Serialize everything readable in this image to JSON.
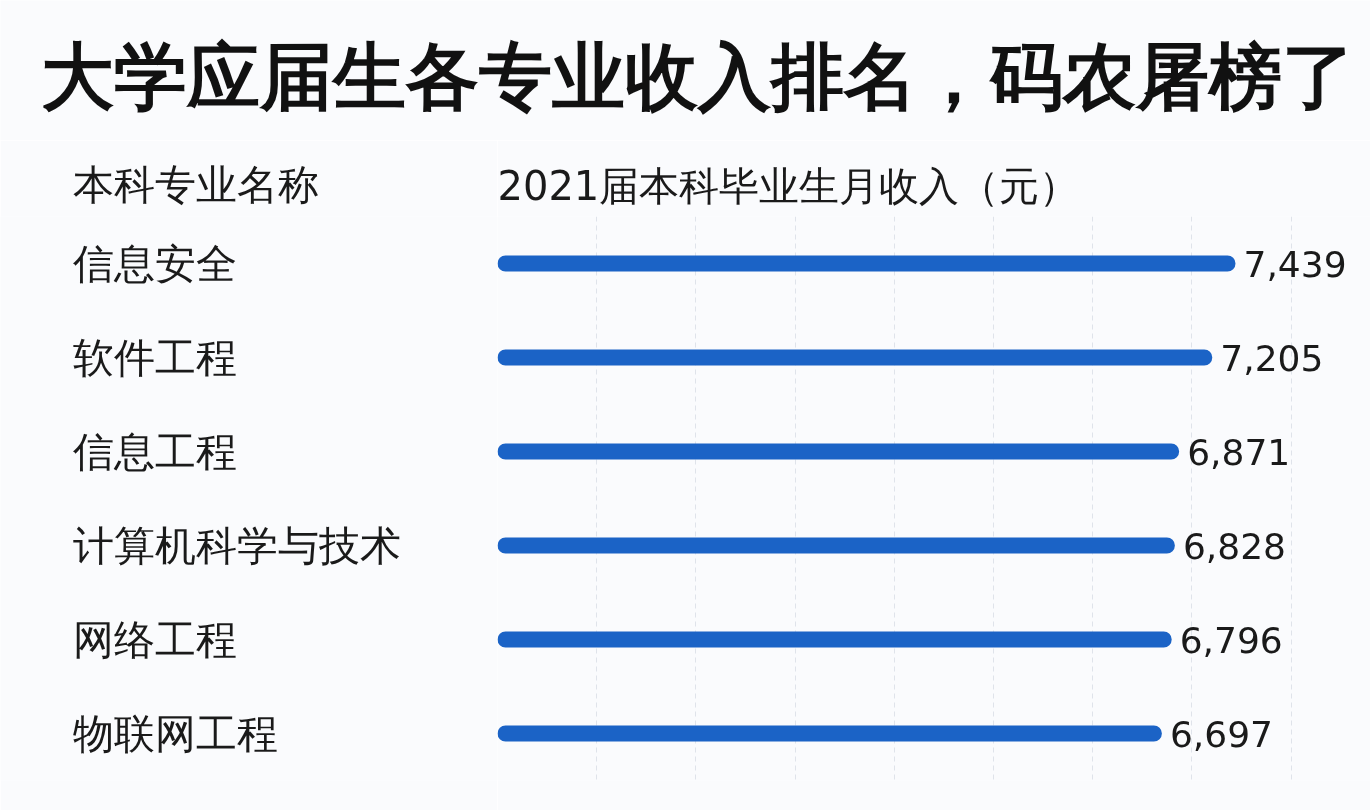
{
  "chart_data": {
    "type": "bar",
    "orientation": "horizontal",
    "title": "大学应届生各专业收入排名，码农屠榜了",
    "ylabel": "本科专业名称",
    "xlabel": "2021届本科毕业生月收入（元）",
    "categories": [
      "信息安全",
      "软件工程",
      "信息工程",
      "计算机科学与技术",
      "网络工程",
      "物联网工程"
    ],
    "values": [
      7439,
      7205,
      6871,
      6828,
      6796,
      6697
    ],
    "value_labels": [
      "7,439",
      "7,205",
      "6,871",
      "6,828",
      "6,796",
      "6,697"
    ],
    "color": "#1b63c6",
    "grid": "x",
    "tick_labels": "y"
  }
}
